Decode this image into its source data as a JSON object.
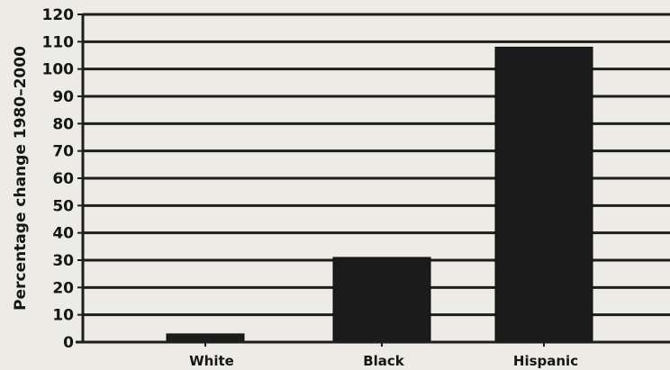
{
  "chart_data": {
    "type": "bar",
    "title": "",
    "xlabel": "",
    "ylabel": "Percentage change 1980–2000",
    "ylim": [
      0,
      120
    ],
    "yticks": [
      0,
      10,
      20,
      30,
      40,
      50,
      60,
      70,
      80,
      90,
      100,
      110,
      120
    ],
    "grid": true,
    "categories": [
      "White",
      "Black",
      "Hispanic"
    ],
    "values": [
      3,
      31,
      108
    ],
    "colors": {
      "bar": "#1b1b1b",
      "grid": "#1e1e1e",
      "background": "#ecebe6",
      "text": "#161616"
    }
  }
}
